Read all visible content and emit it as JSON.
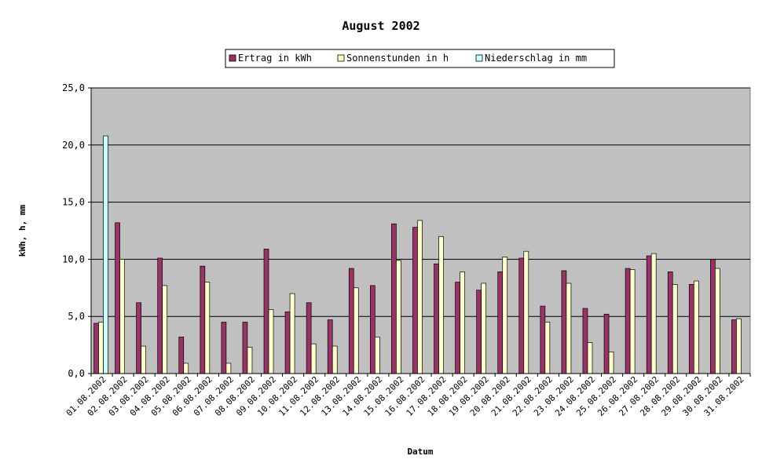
{
  "chart_data": {
    "type": "bar",
    "title": "August 2002",
    "xlabel": "Datum",
    "ylabel": "kWh, h, mm",
    "ylim": [
      0,
      25
    ],
    "yticks": [
      "0,0",
      "5,0",
      "10,0",
      "15,0",
      "20,0",
      "25,0"
    ],
    "grid": true,
    "legend_position": "top",
    "colors": {
      "plot_background": "#C0C0C0",
      "gridline": "#000000",
      "ertrag": "#993366",
      "sonnenstunden": "#FFFFCC",
      "niederschlag": "#CCFFFF"
    },
    "categories": [
      "01.08.2002",
      "02.08.2002",
      "03.08.2002",
      "04.08.2002",
      "05.08.2002",
      "06.08.2002",
      "07.08.2002",
      "08.08.2002",
      "09.08.2002",
      "10.08.2002",
      "11.08.2002",
      "12.08.2002",
      "13.08.2002",
      "14.08.2002",
      "15.08.2002",
      "16.08.2002",
      "17.08.2002",
      "18.08.2002",
      "19.08.2002",
      "20.08.2002",
      "21.08.2002",
      "22.08.2002",
      "23.08.2002",
      "24.08.2002",
      "25.08.2002",
      "26.08.2002",
      "27.08.2002",
      "28.08.2002",
      "29.08.2002",
      "30.08.2002",
      "31.08.2002"
    ],
    "series": [
      {
        "name": "Ertrag in kWh",
        "values": [
          4.4,
          13.2,
          6.2,
          10.1,
          3.2,
          9.4,
          4.5,
          4.5,
          10.9,
          5.4,
          6.2,
          4.7,
          9.2,
          7.7,
          13.1,
          12.8,
          9.6,
          8.0,
          7.3,
          8.9,
          10.1,
          5.9,
          9.0,
          5.7,
          5.2,
          9.2,
          10.3,
          8.9,
          7.8,
          10.0,
          4.7
        ]
      },
      {
        "name": "Sonnenstunden in h",
        "values": [
          4.5,
          10.0,
          2.4,
          7.7,
          0.9,
          8.0,
          0.9,
          2.3,
          5.6,
          7.0,
          2.6,
          2.4,
          7.5,
          3.2,
          9.9,
          13.4,
          12.0,
          8.9,
          7.9,
          10.2,
          10.7,
          4.5,
          7.9,
          2.7,
          1.9,
          9.1,
          10.5,
          7.8,
          8.1,
          9.2,
          4.8
        ]
      },
      {
        "name": "Niederschlag in mm",
        "values": [
          20.8,
          0,
          0,
          0,
          0,
          0,
          0,
          0,
          0,
          0,
          0,
          0,
          0,
          0,
          0,
          0,
          0,
          0,
          0,
          0,
          0,
          0,
          0,
          0,
          0,
          0,
          0,
          0,
          0,
          0,
          0
        ]
      }
    ]
  }
}
